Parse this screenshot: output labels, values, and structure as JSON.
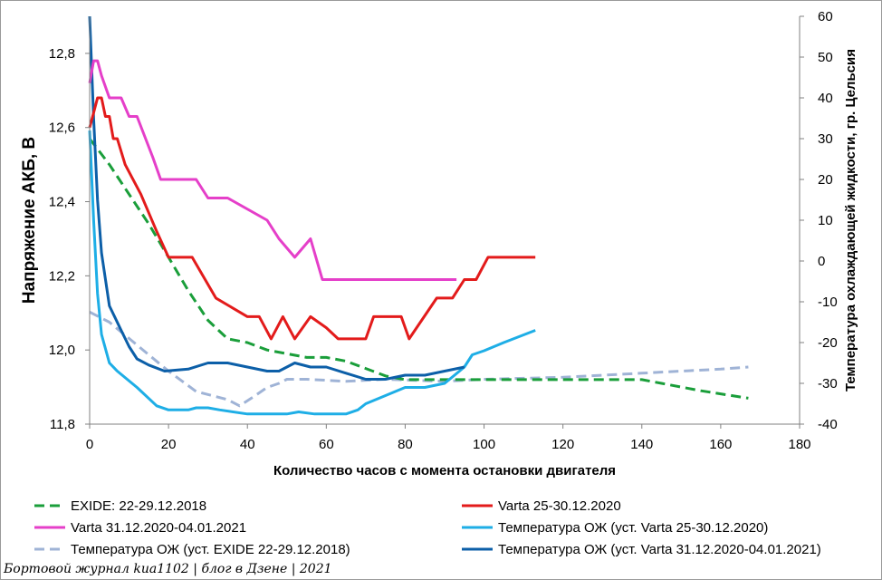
{
  "chart_data": {
    "type": "line",
    "xlabel": "Количество часов с момента остановки двигателя",
    "ylabel": "Напряжение АКБ, В",
    "y2label": "Температура охлаждающей жидкости, гр. Цельсия",
    "xlim": [
      0,
      180
    ],
    "ylim": [
      11.8,
      12.9
    ],
    "y2lim": [
      -40,
      60
    ],
    "x_ticks": [
      "0",
      "20",
      "40",
      "60",
      "80",
      "100",
      "120",
      "140",
      "160",
      "180"
    ],
    "y_ticks": [
      "11,8",
      "12,0",
      "12,2",
      "12,4",
      "12,6",
      "12,8"
    ],
    "y2_ticks": [
      "-40",
      "-30",
      "-20",
      "-10",
      "0",
      "10",
      "20",
      "30",
      "40",
      "50",
      "60"
    ],
    "grid": false,
    "legend_position": "bottom",
    "series": [
      {
        "name": "EXIDE: 22-29.12.2018",
        "axis": "left",
        "color": "#1a9e3a",
        "dash": "dashed",
        "points": [
          [
            0,
            12.57
          ],
          [
            5,
            12.5
          ],
          [
            10,
            12.42
          ],
          [
            15,
            12.34
          ],
          [
            20,
            12.25
          ],
          [
            25,
            12.16
          ],
          [
            30,
            12.08
          ],
          [
            35,
            12.03
          ],
          [
            40,
            12.02
          ],
          [
            45,
            12.0
          ],
          [
            50,
            11.99
          ],
          [
            55,
            11.98
          ],
          [
            60,
            11.98
          ],
          [
            65,
            11.97
          ],
          [
            70,
            11.95
          ],
          [
            75,
            11.93
          ],
          [
            80,
            11.92
          ],
          [
            90,
            11.92
          ],
          [
            100,
            11.92
          ],
          [
            120,
            11.92
          ],
          [
            140,
            11.92
          ],
          [
            145,
            11.91
          ],
          [
            155,
            11.89
          ],
          [
            167,
            11.87
          ]
        ]
      },
      {
        "name": "Varta 25-30.12.2020",
        "axis": "left",
        "color": "#e31b1b",
        "dash": "solid",
        "points": [
          [
            0,
            12.6
          ],
          [
            1,
            12.64
          ],
          [
            2,
            12.68
          ],
          [
            3,
            12.68
          ],
          [
            4,
            12.63
          ],
          [
            5,
            12.63
          ],
          [
            6,
            12.57
          ],
          [
            7,
            12.57
          ],
          [
            9,
            12.5
          ],
          [
            13,
            12.42
          ],
          [
            17,
            12.32
          ],
          [
            20,
            12.25
          ],
          [
            26,
            12.25
          ],
          [
            32,
            12.14
          ],
          [
            40,
            12.09
          ],
          [
            43,
            12.09
          ],
          [
            46,
            12.03
          ],
          [
            49,
            12.09
          ],
          [
            52,
            12.03
          ],
          [
            56,
            12.09
          ],
          [
            60,
            12.06
          ],
          [
            63,
            12.03
          ],
          [
            70,
            12.03
          ],
          [
            72,
            12.09
          ],
          [
            79,
            12.09
          ],
          [
            81,
            12.03
          ],
          [
            88,
            12.14
          ],
          [
            92,
            12.14
          ],
          [
            95,
            12.19
          ],
          [
            98,
            12.19
          ],
          [
            101,
            12.25
          ],
          [
            113,
            12.25
          ]
        ]
      },
      {
        "name": "Varta 31.12.2020-04.01.2021",
        "axis": "left",
        "color": "#e53fc9",
        "dash": "solid",
        "points": [
          [
            0,
            12.72
          ],
          [
            1,
            12.78
          ],
          [
            2,
            12.78
          ],
          [
            3,
            12.74
          ],
          [
            5,
            12.68
          ],
          [
            8,
            12.68
          ],
          [
            10,
            12.63
          ],
          [
            12,
            12.63
          ],
          [
            16,
            12.52
          ],
          [
            18,
            12.46
          ],
          [
            27,
            12.46
          ],
          [
            30,
            12.41
          ],
          [
            35,
            12.41
          ],
          [
            45,
            12.35
          ],
          [
            48,
            12.3
          ],
          [
            52,
            12.25
          ],
          [
            56,
            12.3
          ],
          [
            59,
            12.19
          ],
          [
            70,
            12.19
          ],
          [
            80,
            12.19
          ],
          [
            93,
            12.19
          ]
        ]
      },
      {
        "name": "Температура ОЖ (уст. Varta 25-30.12.2020)",
        "axis": "right",
        "color": "#1eaee6",
        "dash": "solid",
        "points": [
          [
            0,
            32
          ],
          [
            1,
            10
          ],
          [
            2,
            -8
          ],
          [
            3,
            -18
          ],
          [
            5,
            -25
          ],
          [
            7,
            -27
          ],
          [
            12,
            -31
          ],
          [
            17,
            -35.5
          ],
          [
            20,
            -36.5
          ],
          [
            25,
            -36.5
          ],
          [
            27,
            -36
          ],
          [
            30,
            -36
          ],
          [
            33,
            -36.5
          ],
          [
            40,
            -37.5
          ],
          [
            50,
            -37.5
          ],
          [
            53,
            -37
          ],
          [
            57,
            -37.5
          ],
          [
            65,
            -37.5
          ],
          [
            68,
            -36.5
          ],
          [
            70,
            -35
          ],
          [
            75,
            -33
          ],
          [
            80,
            -31
          ],
          [
            85,
            -31
          ],
          [
            90,
            -30
          ],
          [
            95,
            -26
          ],
          [
            97,
            -23
          ],
          [
            100,
            -22
          ],
          [
            105,
            -20
          ],
          [
            113,
            -17
          ]
        ]
      },
      {
        "name": "Температура ОЖ (уст. EXIDE 22-29.12.2018)",
        "axis": "right",
        "color": "#9fb3d6",
        "dash": "dashed",
        "points": [
          [
            0,
            -12.5
          ],
          [
            5,
            -15
          ],
          [
            10,
            -19
          ],
          [
            15,
            -23
          ],
          [
            20,
            -27
          ],
          [
            27,
            -32
          ],
          [
            35,
            -34
          ],
          [
            38,
            -35.5
          ],
          [
            42,
            -33
          ],
          [
            45,
            -31
          ],
          [
            48,
            -30
          ],
          [
            50,
            -29
          ],
          [
            55,
            -29
          ],
          [
            65,
            -29.5
          ],
          [
            75,
            -29
          ],
          [
            90,
            -29.5
          ],
          [
            100,
            -29
          ],
          [
            120,
            -28.5
          ],
          [
            140,
            -27.5
          ],
          [
            150,
            -27
          ],
          [
            160,
            -26.5
          ],
          [
            167,
            -26
          ]
        ]
      },
      {
        "name": "Температура ОЖ (уст. Varta 31.12.2020-04.01.2021)",
        "axis": "right",
        "color": "#0c5fa8",
        "dash": "solid",
        "points": [
          [
            0,
            60
          ],
          [
            1,
            35
          ],
          [
            2,
            15
          ],
          [
            3,
            2
          ],
          [
            5,
            -11
          ],
          [
            8,
            -17
          ],
          [
            10,
            -21
          ],
          [
            12,
            -24
          ],
          [
            15,
            -25.5
          ],
          [
            19,
            -27
          ],
          [
            25,
            -26.5
          ],
          [
            30,
            -25
          ],
          [
            35,
            -25
          ],
          [
            40,
            -26
          ],
          [
            45,
            -27
          ],
          [
            48,
            -27
          ],
          [
            52,
            -25
          ],
          [
            56,
            -26
          ],
          [
            60,
            -26
          ],
          [
            65,
            -27.5
          ],
          [
            70,
            -29
          ],
          [
            75,
            -29
          ],
          [
            80,
            -28
          ],
          [
            85,
            -28
          ],
          [
            90,
            -27
          ],
          [
            95,
            -26
          ]
        ]
      }
    ]
  },
  "footer": "Бортовой журнал kиа1102 | блог в Дзене | 2021"
}
